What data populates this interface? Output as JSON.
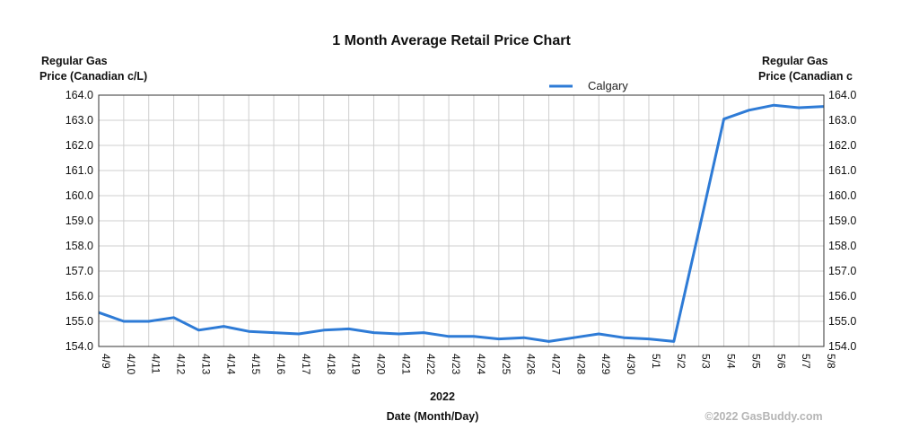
{
  "chart_data": {
    "type": "line",
    "title": "1 Month Average Retail Price Chart",
    "ylabel_left": [
      "Regular Gas",
      "Price (Canadian c/L)"
    ],
    "ylabel_right": [
      "Regular Gas",
      "Price (Canadian c"
    ],
    "xlabel_year": "2022",
    "xlabel": "Date (Month/Day)",
    "credit": "©2022 GasBuddy.com",
    "ylim": [
      154.0,
      164.0
    ],
    "yticks": [
      "154.0",
      "155.0",
      "156.0",
      "157.0",
      "158.0",
      "159.0",
      "160.0",
      "161.0",
      "162.0",
      "163.0",
      "164.0"
    ],
    "categories": [
      "4/9",
      "4/10",
      "4/11",
      "4/12",
      "4/13",
      "4/14",
      "4/15",
      "4/16",
      "4/17",
      "4/18",
      "4/19",
      "4/20",
      "4/21",
      "4/22",
      "4/23",
      "4/24",
      "4/25",
      "4/26",
      "4/27",
      "4/28",
      "4/29",
      "4/30",
      "5/1",
      "5/2",
      "5/3",
      "5/4",
      "5/5",
      "5/6",
      "5/7",
      "5/8"
    ],
    "grid": true,
    "legend_position": "top-right",
    "series": [
      {
        "name": "Calgary",
        "color": "#2e7bd6",
        "values": [
          155.35,
          155.0,
          155.0,
          155.15,
          154.65,
          154.8,
          154.6,
          154.55,
          154.5,
          154.65,
          154.7,
          154.55,
          154.5,
          154.55,
          154.4,
          154.4,
          154.3,
          154.35,
          154.2,
          154.35,
          154.5,
          154.35,
          154.3,
          154.2,
          158.6,
          163.05,
          163.4,
          163.6,
          163.5,
          163.55
        ]
      }
    ]
  }
}
